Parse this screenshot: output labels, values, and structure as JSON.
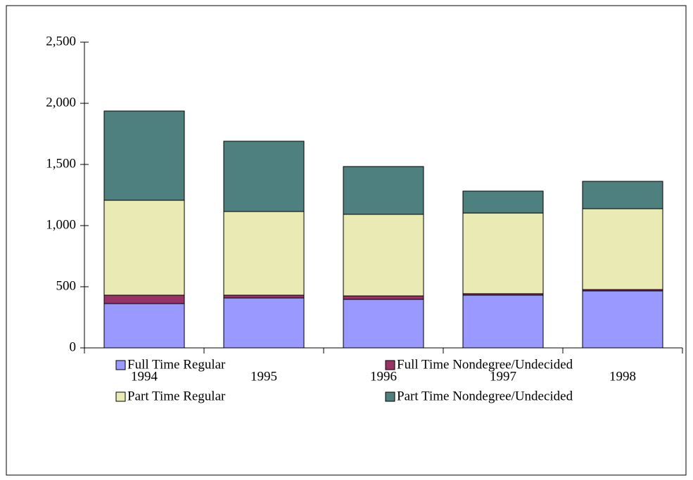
{
  "chart_data": {
    "type": "stacked_bar",
    "categories": [
      "1994",
      "1995",
      "1996",
      "1997",
      "1998"
    ],
    "series": [
      {
        "name": "Full Time Regular",
        "color": "#9999ff",
        "values": [
          362,
          408,
          397,
          431,
          466
        ]
      },
      {
        "name": "Full Time Nondegree/Undecided",
        "color": "#993366",
        "values": [
          69,
          23,
          28,
          12,
          11
        ]
      },
      {
        "name": "Part Time Regular",
        "color": "#eaeab4",
        "values": [
          776,
          684,
          667,
          660,
          661
        ]
      },
      {
        "name": "Part Time Nondegree/Undecided",
        "color": "#4f8080",
        "values": [
          730,
          575,
          391,
          179,
          224
        ]
      }
    ],
    "ylim": [
      0,
      2500
    ],
    "yticks": [
      0,
      500,
      {
        "value": 1000,
        "label": "1,000"
      },
      {
        "value": 1500,
        "label": "1,500"
      },
      {
        "value": 2000,
        "label": "2,000"
      },
      {
        "value": 2500,
        "label": "2,500"
      }
    ],
    "legend": "bottom"
  }
}
